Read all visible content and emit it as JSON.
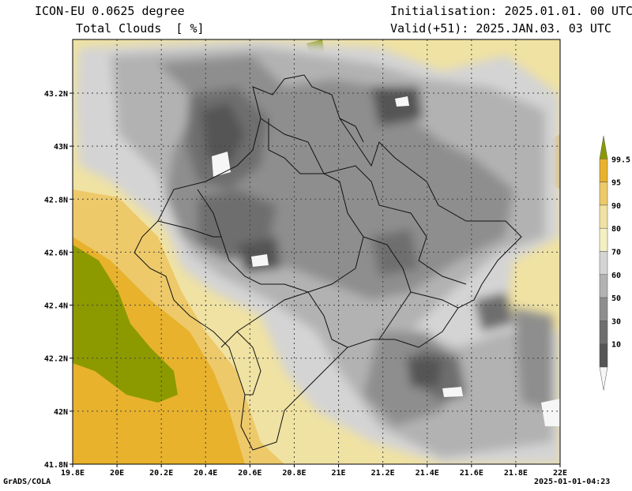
{
  "header": {
    "model": "ICON-EU 0.0625 degree",
    "variable": "Total Clouds  [ %]",
    "init": "Initialisation: 2025.01.01. 00 UTC",
    "valid": "Valid(+51): 2025.JAN.03. 03 UTC"
  },
  "footer": {
    "credit": "GrADS/COLA",
    "timestamp": "2025-01-01-04:23"
  },
  "axes": {
    "x_ticks": [
      "19.8E",
      "20E",
      "20.2E",
      "20.4E",
      "20.6E",
      "20.8E",
      "21E",
      "21.2E",
      "21.4E",
      "21.6E",
      "21.8E",
      "22E"
    ],
    "y_ticks": [
      "43.2N",
      "43N",
      "42.8N",
      "42.6N",
      "42.4N",
      "42.2N",
      "42N",
      "41.8N"
    ]
  },
  "colorbar": {
    "levels": [
      "99.5",
      "95",
      "90",
      "80",
      "70",
      "60",
      "50",
      "30",
      "10"
    ],
    "colors": [
      "#8c9a00",
      "#e8b22c",
      "#edc96a",
      "#f0e2a2",
      "#f4f0c4",
      "#d4d4d4",
      "#b2b2b2",
      "#8e8e8e",
      "#6e6e6e",
      "#555555",
      "#f6f6f6"
    ]
  },
  "colors": {
    "frame": "#000000",
    "borders": "#111111",
    "grid": "#444444"
  }
}
